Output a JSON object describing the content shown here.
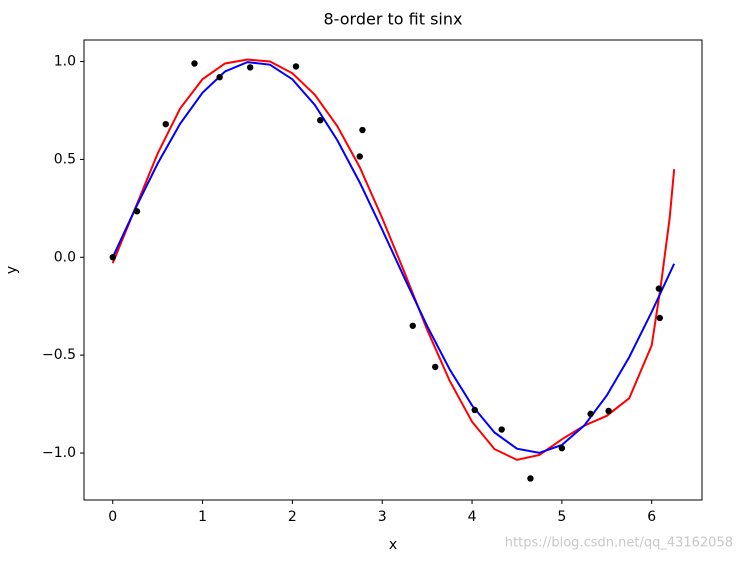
{
  "chart_data": {
    "type": "line",
    "title": "8-order to fit sinx",
    "xlabel": "x",
    "ylabel": "y",
    "xlim": [
      -0.32,
      6.56
    ],
    "ylim": [
      -1.24,
      1.11
    ],
    "xticks": [
      0,
      1,
      2,
      3,
      4,
      5,
      6
    ],
    "yticks": [
      {
        "value": -1.0,
        "label": "−1.0"
      },
      {
        "value": -0.5,
        "label": "−0.5"
      },
      {
        "value": 0.0,
        "label": "0.0"
      },
      {
        "value": 0.5,
        "label": "0.5"
      },
      {
        "value": 1.0,
        "label": "1.0"
      }
    ],
    "scatter": {
      "color": "#000000",
      "x": [
        0,
        0.27,
        0.59,
        0.91,
        1.19,
        1.53,
        2.04,
        2.31,
        2.75,
        2.78,
        3.34,
        3.59,
        4.03,
        4.33,
        4.65,
        5.0,
        5.32,
        5.52,
        6.08,
        6.09
      ],
      "values": [
        0,
        0.235,
        0.68,
        0.99,
        0.92,
        0.97,
        0.975,
        0.7,
        0.515,
        0.65,
        -0.35,
        -0.56,
        -0.78,
        -0.88,
        -1.13,
        -0.975,
        -0.8,
        -0.785,
        -0.16,
        -0.31
      ]
    },
    "series": [
      {
        "color": "#ff0000",
        "x": [
          0,
          0.25,
          0.5,
          0.75,
          1,
          1.25,
          1.5,
          1.75,
          2,
          2.25,
          2.5,
          2.75,
          3,
          3.25,
          3.5,
          3.75,
          4,
          4.25,
          4.5,
          4.75,
          5,
          5.25,
          5.5,
          5.75,
          6,
          6.1,
          6.2,
          6.25
        ],
        "values": [
          -0.03,
          0.25,
          0.53,
          0.76,
          0.91,
          0.99,
          1.01,
          1.0,
          0.94,
          0.83,
          0.67,
          0.46,
          0.2,
          -0.08,
          -0.37,
          -0.63,
          -0.84,
          -0.98,
          -1.035,
          -1.01,
          -0.93,
          -0.86,
          -0.81,
          -0.72,
          -0.45,
          -0.15,
          0.2,
          0.45
        ]
      },
      {
        "color": "#0000ff",
        "x": [
          0,
          0.25,
          0.5,
          0.75,
          1,
          1.25,
          1.5,
          1.75,
          2,
          2.25,
          2.5,
          2.75,
          3,
          3.25,
          3.5,
          3.75,
          4,
          4.25,
          4.5,
          4.75,
          5,
          5.25,
          5.5,
          5.75,
          6,
          6.25
        ],
        "values": [
          0,
          0.247,
          0.479,
          0.682,
          0.841,
          0.949,
          0.997,
          0.984,
          0.909,
          0.778,
          0.598,
          0.382,
          0.141,
          -0.108,
          -0.351,
          -0.572,
          -0.757,
          -0.895,
          -0.978,
          -0.999,
          -0.959,
          -0.859,
          -0.706,
          -0.51,
          -0.279,
          -0.033
        ]
      }
    ],
    "watermark": "https://blog.csdn.net/qq_43162058"
  }
}
